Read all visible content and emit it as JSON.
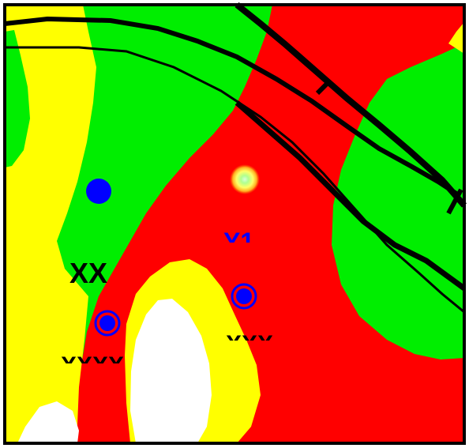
{
  "map": {
    "colors": {
      "green": "#00ee00",
      "yellow": "#ffff00",
      "red": "#ff0000",
      "white": "#ffffff",
      "border": "#000000",
      "road": "#000000",
      "marker_blue": "#0000ff"
    },
    "labels": {
      "xx": "XX",
      "y1": "Y1",
      "xxx": "XXX",
      "xxxx": "XXXX"
    },
    "markers": [
      {
        "name": "blue-dot-marker",
        "style": "filled-circle"
      },
      {
        "name": "glowing-point-marker",
        "style": "radial-glow"
      },
      {
        "name": "ringed-marker-y1",
        "style": "ringed-circle"
      },
      {
        "name": "ringed-marker-xxxx",
        "style": "ringed-circle"
      }
    ]
  }
}
